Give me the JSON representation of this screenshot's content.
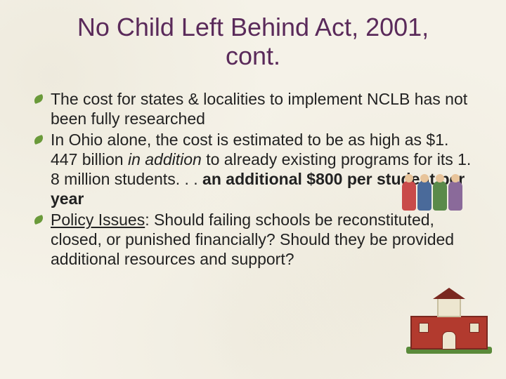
{
  "title": "No Child Left Behind Act, 2001, cont.",
  "bullets": [
    {
      "segments": [
        {
          "text": "The cost for states & localities to implement NCLB has not been fully researched"
        }
      ]
    },
    {
      "segments": [
        {
          "text": "In Ohio alone, the cost is estimated to be as high as $1. 447 billion "
        },
        {
          "text": "in addition",
          "italic": true
        },
        {
          "text": " to already existing programs for its 1. 8 million students. . . "
        },
        {
          "text": "an additional $800 per student per year",
          "bold": true
        }
      ]
    },
    {
      "segments": [
        {
          "text": "Policy Issues",
          "underline": true
        },
        {
          "text": ": Should failing schools be reconstituted, closed, or punished financially? Should they be provided additional resources and support?"
        }
      ]
    }
  ],
  "style": {
    "background_color": "#f5f2e8",
    "title_color": "#5a2a5a",
    "title_fontsize": 36,
    "body_color": "#222222",
    "body_fontsize": 23,
    "bullet_color": "#6a9a3a"
  },
  "clipart": {
    "musicians": {
      "present": true,
      "figures": [
        {
          "color": "#c94a4a"
        },
        {
          "color": "#4a6a9a"
        },
        {
          "color": "#5a8a4a"
        },
        {
          "color": "#8a6a9a"
        }
      ]
    },
    "school": {
      "present": true,
      "brick_color": "#b23a2e",
      "roof_color": "#7a2820",
      "wall_color": "#ede6d0",
      "grass_color": "#5a8a3a"
    }
  }
}
